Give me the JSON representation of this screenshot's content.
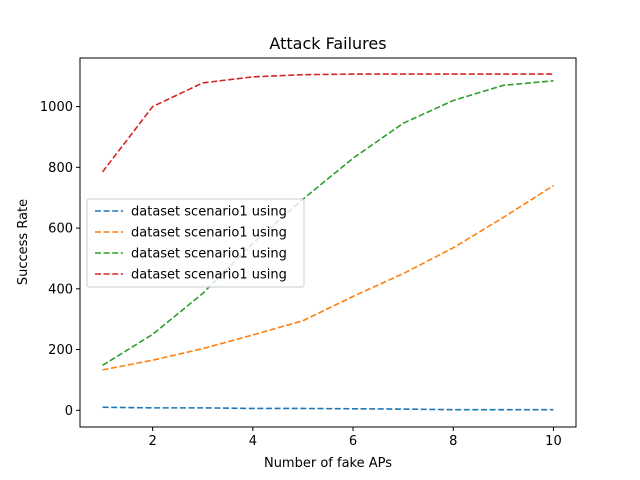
{
  "chart_data": {
    "type": "line",
    "title": "Attack Failures",
    "xlabel": "Number of fake APs",
    "ylabel": "Success Rate",
    "xlim": [
      0.55,
      10.45
    ],
    "ylim": [
      -55,
      1160
    ],
    "xticks": [
      2,
      4,
      6,
      8,
      10
    ],
    "yticks": [
      0,
      200,
      400,
      600,
      800,
      1000
    ],
    "grid": false,
    "legend_position": "center-left",
    "line_style": "dashed",
    "x": [
      1,
      2,
      3,
      4,
      5,
      6,
      7,
      8,
      9,
      10
    ],
    "series": [
      {
        "name": "dataset scenario1 using",
        "color": "#1f77b4",
        "values": [
          10,
          8,
          8,
          6,
          6,
          5,
          4,
          2,
          2,
          2
        ]
      },
      {
        "name": "dataset scenario1 using",
        "color": "#ff7f0e",
        "values": [
          133,
          165,
          203,
          248,
          295,
          375,
          450,
          535,
          635,
          740
        ]
      },
      {
        "name": "dataset scenario1 using",
        "color": "#2ca02c",
        "values": [
          148,
          250,
          385,
          550,
          695,
          830,
          945,
          1020,
          1070,
          1085
        ]
      },
      {
        "name": "dataset scenario1 using",
        "color": "#d62728",
        "values": [
          785,
          1000,
          1078,
          1098,
          1105,
          1107,
          1107,
          1107,
          1107,
          1107
        ]
      }
    ]
  }
}
